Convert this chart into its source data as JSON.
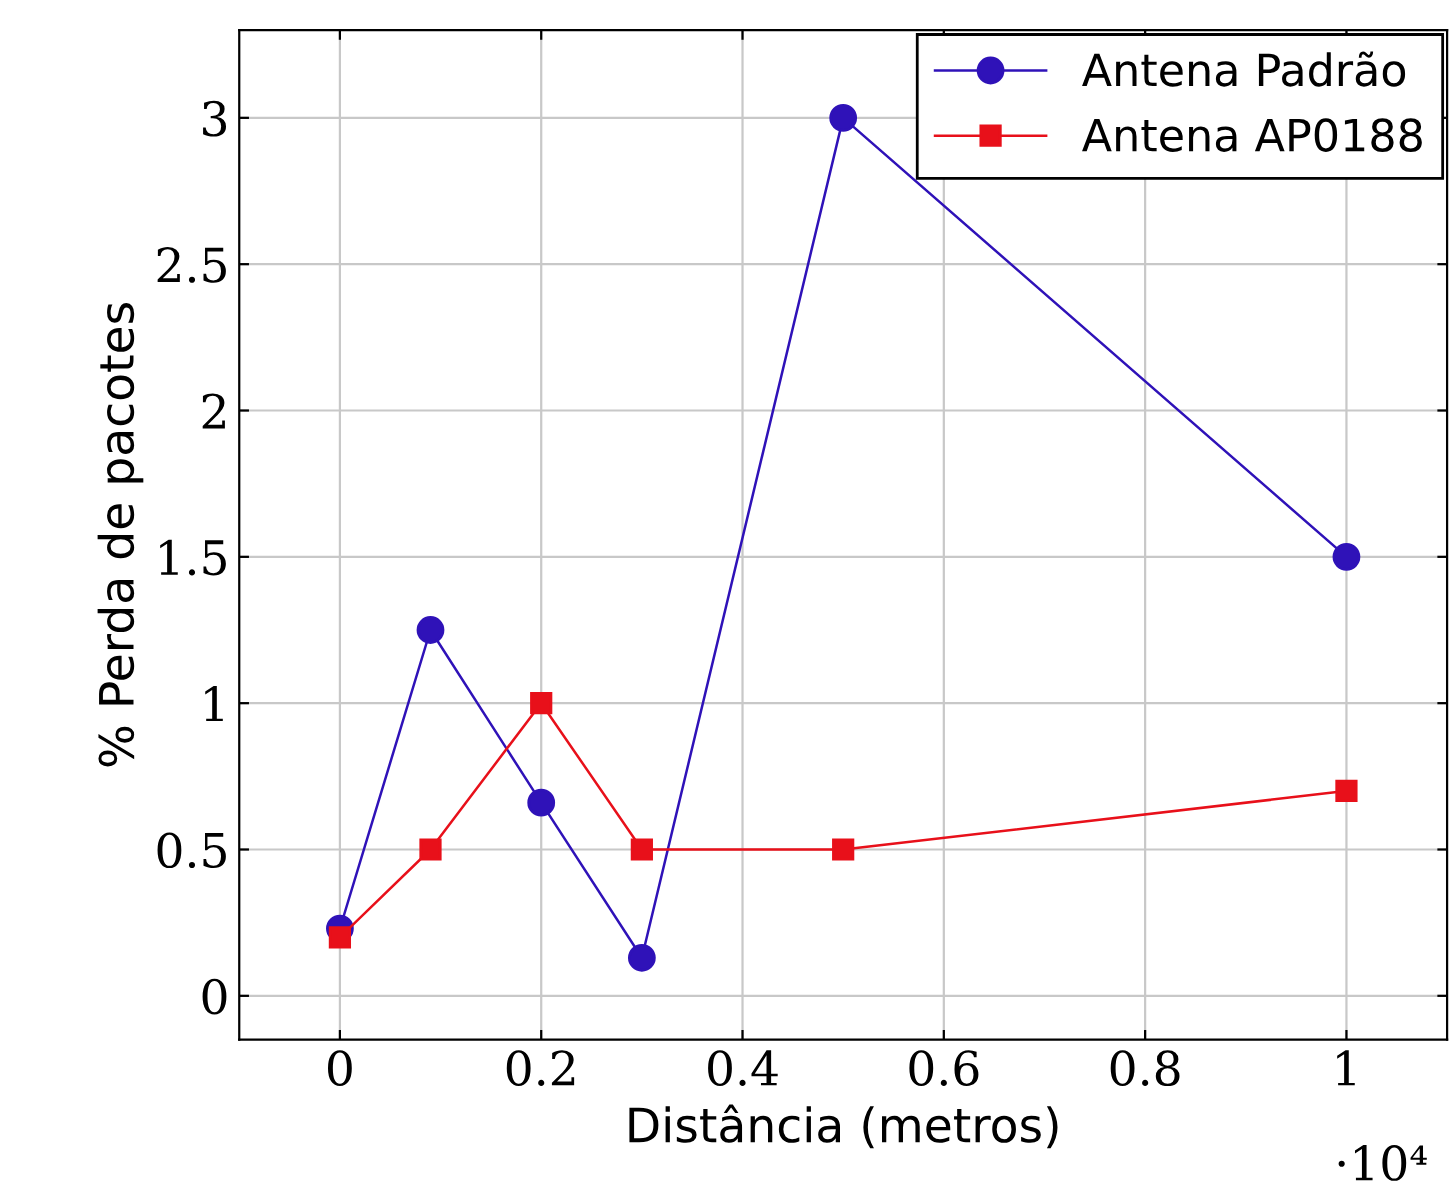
{
  "chart_data": {
    "type": "line",
    "xlabel": "Distância (metros)",
    "ylabel": "% Perda de pacotes",
    "series": [
      {
        "name": "Antena Padrão",
        "color": "#2f12b8",
        "marker": "circle",
        "x": [
          0,
          0.09,
          0.2,
          0.3,
          0.5,
          1
        ],
        "values": [
          0.23,
          1.25,
          0.66,
          0.13,
          3.0,
          1.5
        ]
      },
      {
        "name": "Antena AP0188",
        "color": "#e8101a",
        "marker": "square",
        "x": [
          0,
          0.09,
          0.2,
          0.3,
          0.5,
          1
        ],
        "values": [
          0.2,
          0.5,
          1.0,
          0.5,
          0.5,
          0.7
        ]
      }
    ],
    "xlim": [
      -0.1,
      1.1
    ],
    "ylim": [
      -0.15,
      3.3
    ],
    "xticks": [
      0,
      0.2,
      0.4,
      0.6,
      0.8,
      1
    ],
    "yticks": [
      0,
      0.5,
      1,
      1.5,
      2,
      2.5,
      3
    ],
    "annotations": [
      "·10⁴"
    ],
    "grid": true,
    "legend": "top right",
    "line_style": "solid"
  }
}
